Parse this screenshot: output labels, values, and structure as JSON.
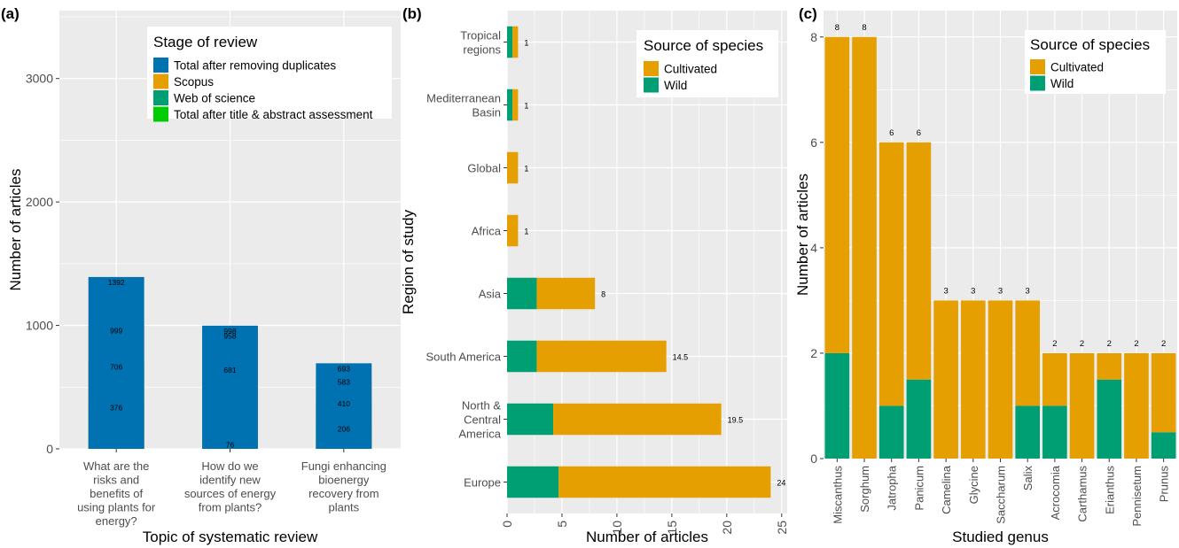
{
  "colors": {
    "panel_bg": "#EBEBEB",
    "grid": "#FFFFFF",
    "total_after_removing_duplicates": "#0072B2",
    "scopus": "#E69F00",
    "web_of_science": "#009E73",
    "title_abstract": "#00CC00",
    "cultivated": "#E69F00",
    "wild": "#009E73"
  },
  "chart_data": [
    {
      "panel_label": "(a)",
      "type": "bar",
      "stacked": true,
      "xlabel": "Topic of systematic review",
      "ylabel": "Number of articles",
      "ylim": [
        0,
        3550
      ],
      "yticks": [
        0,
        1000,
        2000,
        3000
      ],
      "ytick_labels": [
        "0",
        "1000",
        "2000",
        "3000"
      ],
      "categories": [
        [
          "What are the",
          "risks and",
          "benefits of",
          "using plants for",
          "energy?"
        ],
        [
          "How do we",
          "identify new",
          "sources of energy",
          "from plants?"
        ],
        [
          "Fungi enhancing",
          "bioenergy",
          "recovery from",
          "plants"
        ]
      ],
      "legend": {
        "title": "Stage of review",
        "position": "top-right"
      },
      "series": [
        {
          "name": "Total after removing duplicates",
          "color_key": "total_after_removing_duplicates",
          "values": [
            1392,
            998,
            693
          ]
        },
        {
          "name": "Scopus",
          "color_key": "scopus",
          "values": [
            999,
            958,
            583
          ]
        },
        {
          "name": "Web of science",
          "color_key": "web_of_science",
          "values": [
            706,
            681,
            410
          ]
        },
        {
          "name": "Total after title & abstract assessment",
          "color_key": "title_abstract",
          "values": [
            376,
            76,
            206
          ]
        }
      ],
      "data_labels": [
        [
          "376",
          "706",
          "999",
          "1392"
        ],
        [
          "76",
          "681",
          "958",
          "998"
        ],
        [
          "206",
          "410",
          "583",
          "693"
        ]
      ]
    },
    {
      "panel_label": "(b)",
      "type": "bar",
      "orientation": "horizontal",
      "stacked": true,
      "xlabel": "Number of articles",
      "ylabel": "Region of study",
      "xlim": [
        0,
        25.5
      ],
      "xticks": [
        0,
        5,
        10,
        15,
        20,
        25
      ],
      "xtick_labels": [
        "0",
        "5",
        "10",
        "15",
        "20",
        "25"
      ],
      "categories": [
        [
          "Tropical",
          "regions"
        ],
        [
          "Mediterranean",
          "Basin"
        ],
        [
          "Global"
        ],
        [
          "Africa"
        ],
        [
          "Asia"
        ],
        [
          "South America"
        ],
        [
          "North &",
          "Central",
          "America"
        ],
        [
          "Europe"
        ]
      ],
      "legend": {
        "title": "Source of species",
        "position": "top-right"
      },
      "series": [
        {
          "name": "Wild",
          "color_key": "wild",
          "values": [
            0.5,
            0.5,
            0,
            0,
            2.7,
            2.7,
            4.2,
            4.7
          ]
        },
        {
          "name": "Cultivated",
          "color_key": "cultivated",
          "values": [
            0.5,
            0.5,
            1,
            1,
            5.3,
            11.8,
            15.3,
            19.3
          ]
        }
      ],
      "totals": [
        "1",
        "1",
        "1",
        "1",
        "8",
        "14.5",
        "19.5",
        "24"
      ]
    },
    {
      "panel_label": "(c)",
      "type": "bar",
      "stacked": true,
      "xlabel": "Studied genus",
      "ylabel": "Number of articles",
      "ylim": [
        0,
        8.5
      ],
      "yticks": [
        0,
        2,
        4,
        6,
        8
      ],
      "ytick_labels": [
        "0",
        "2",
        "4",
        "6",
        "8"
      ],
      "categories": [
        "Miscanthus",
        "Sorghum",
        "Jatropha",
        "Panicum",
        "Camelina",
        "Glycine",
        "Saccharum",
        "Salix",
        "Acrocomia",
        "Carthamus",
        "Erianthus",
        "Pennisetum",
        "Prunus"
      ],
      "legend": {
        "title": "Source of species",
        "position": "top-right"
      },
      "series": [
        {
          "name": "Wild",
          "color_key": "wild",
          "values": [
            2,
            0,
            1,
            1.5,
            0,
            0,
            0,
            1,
            1,
            0,
            1.5,
            0,
            0.5
          ]
        },
        {
          "name": "Cultivated",
          "color_key": "cultivated",
          "values": [
            6,
            8,
            5,
            4.5,
            3,
            3,
            3,
            2,
            1,
            2,
            0.5,
            2,
            1.5
          ]
        }
      ],
      "totals": [
        "8",
        "8",
        "6",
        "6",
        "3",
        "3",
        "3",
        "3",
        "2",
        "2",
        "2",
        "2",
        "2"
      ]
    }
  ]
}
